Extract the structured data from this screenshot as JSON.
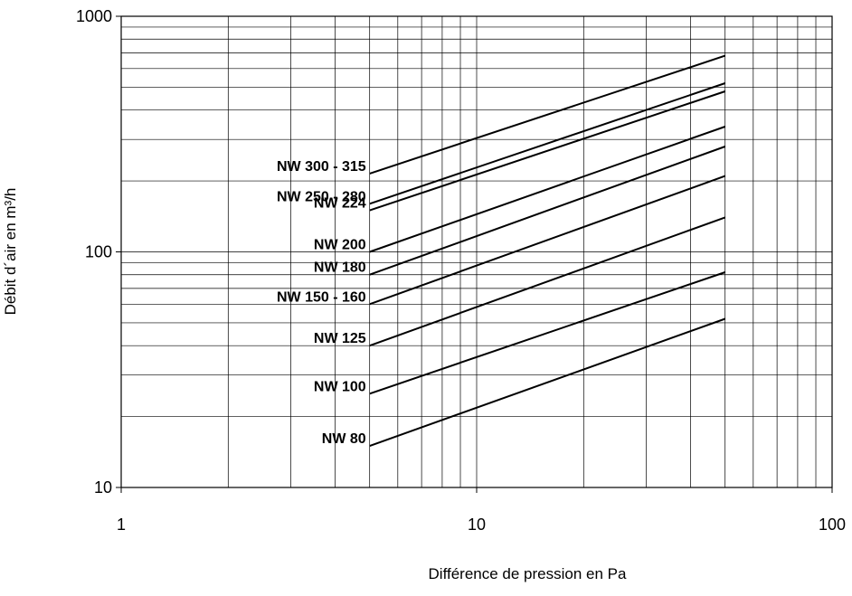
{
  "chart_data": {
    "type": "line",
    "title": "",
    "xlabel": "Différence de pression en Pa",
    "ylabel": "Débit d´air en m³/h",
    "x_scale": "log",
    "y_scale": "log",
    "xlim": [
      1,
      100
    ],
    "ylim": [
      10,
      1000
    ],
    "x_ticks": [
      "1",
      "10",
      "100"
    ],
    "y_ticks": [
      "10",
      "100",
      "1000"
    ],
    "grid": true,
    "legend": "labels at line start",
    "line_color": "#000000",
    "series": [
      {
        "name": "NW 300 - 315",
        "x": [
          5,
          50
        ],
        "y": [
          215,
          680
        ]
      },
      {
        "name": "NW 250 - 280",
        "x": [
          5,
          50
        ],
        "y": [
          160,
          520
        ]
      },
      {
        "name": "NW 224",
        "x": [
          5,
          50
        ],
        "y": [
          150,
          480
        ]
      },
      {
        "name": "NW 200",
        "x": [
          5,
          50
        ],
        "y": [
          100,
          340
        ]
      },
      {
        "name": "NW 180",
        "x": [
          5,
          50
        ],
        "y": [
          80,
          280
        ]
      },
      {
        "name": "NW 150 - 160",
        "x": [
          5,
          50
        ],
        "y": [
          60,
          210
        ]
      },
      {
        "name": "NW 125",
        "x": [
          5,
          50
        ],
        "y": [
          40,
          140
        ]
      },
      {
        "name": "NW 100",
        "x": [
          5,
          50
        ],
        "y": [
          25,
          82
        ]
      },
      {
        "name": "NW 80",
        "x": [
          5,
          50
        ],
        "y": [
          15,
          52
        ]
      }
    ]
  }
}
